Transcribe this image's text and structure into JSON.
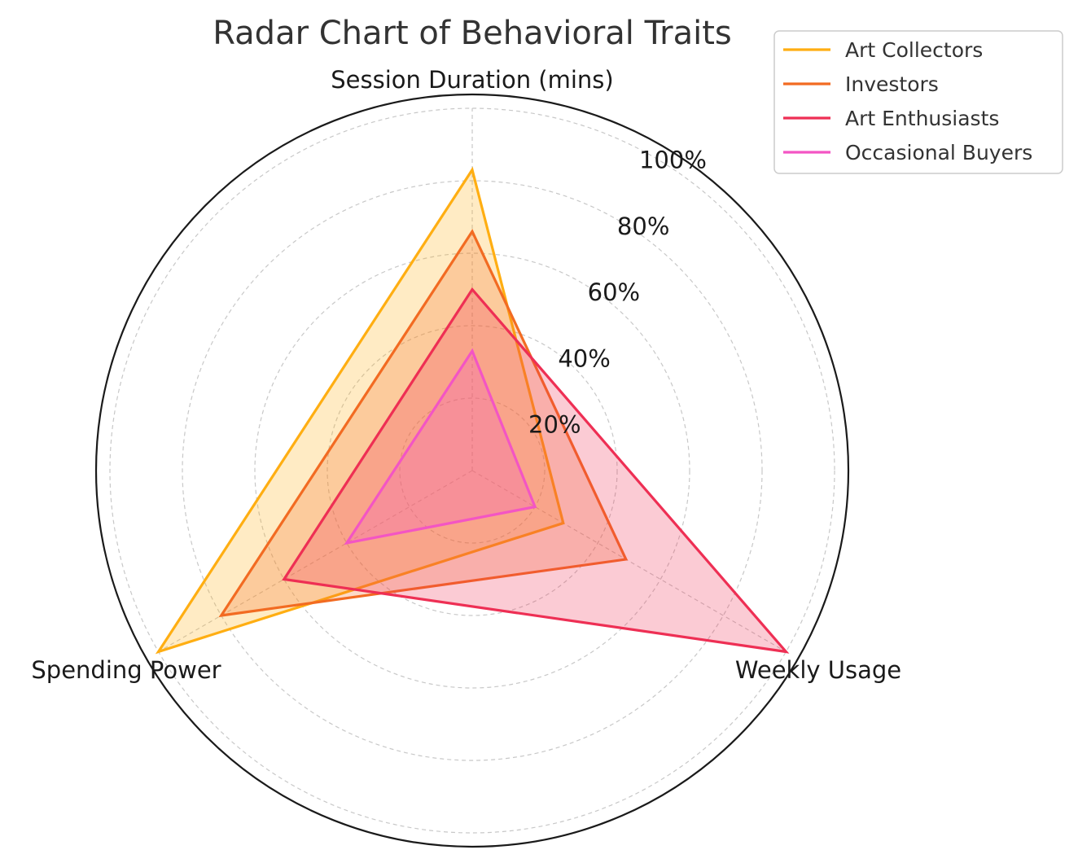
{
  "chart_data": {
    "type": "radar",
    "title": "Radar Chart of Behavioral Traits",
    "axes": [
      "Session Duration (mins)",
      "Weekly Usage",
      "Spending Power"
    ],
    "radial_ticks": [
      "20%",
      "40%",
      "60%",
      "80%",
      "100%"
    ],
    "radial_range": [
      0,
      100
    ],
    "grid": true,
    "legend_position": "top-right",
    "series": [
      {
        "name": "Art Collectors",
        "color": "#ffae12",
        "fill_alpha": 0.25,
        "values": [
          83,
          29,
          100
        ]
      },
      {
        "name": "Investors",
        "color": "#f26b22",
        "fill_alpha": 0.25,
        "values": [
          66,
          49,
          80
        ]
      },
      {
        "name": "Art Enthusiasts",
        "color": "#ee2f54",
        "fill_alpha": 0.25,
        "values": [
          50,
          100,
          60
        ]
      },
      {
        "name": "Occasional Buyers",
        "color": "#f355c4",
        "fill_alpha": 0.25,
        "values": [
          33,
          20,
          40
        ]
      }
    ]
  }
}
